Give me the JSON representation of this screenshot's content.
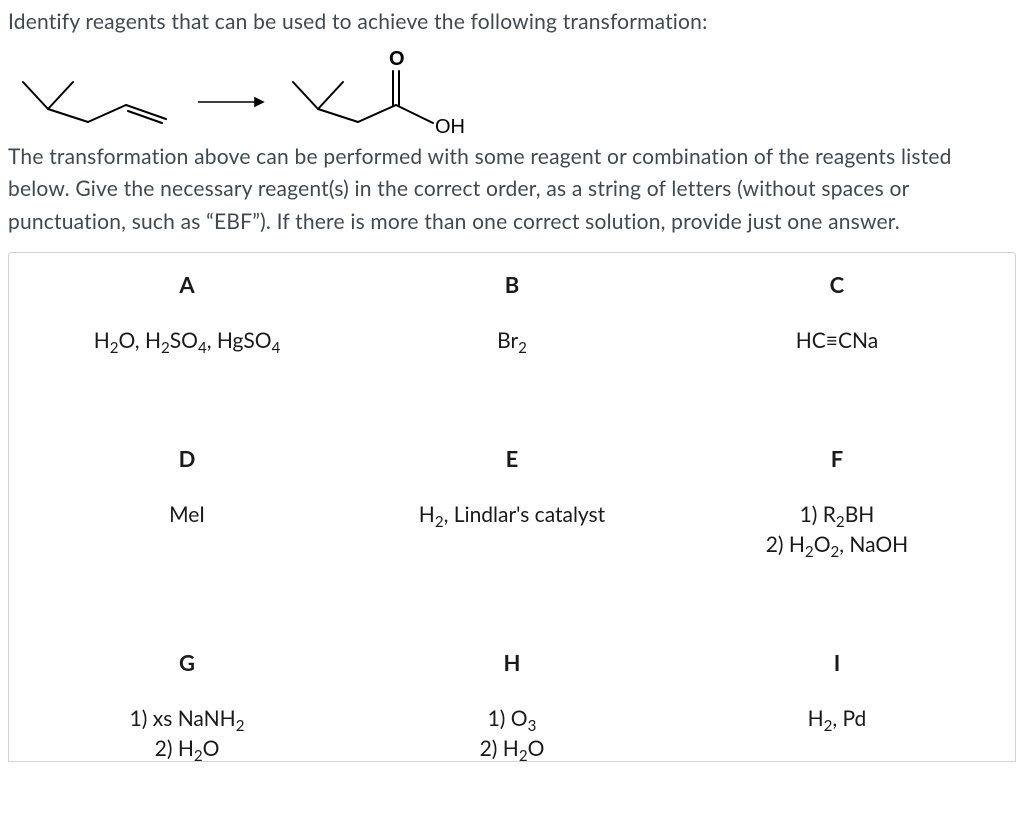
{
  "intro": "Identify reagents that can be used to achieve the following transformation:",
  "paragraph_prefix": "The transformation above can be performed with some reagent or combination of the reagents listed below. Give the necessary reagent(s) in the correct order, as a string of letters (without spaces or punctuation, such as “",
  "paragraph_code": "EBF",
  "paragraph_suffix": "”). If there is more than one correct solution, provide just one answer.",
  "reaction": {
    "product_label_O": "O",
    "product_label_OH": "OH",
    "stroke_color": "#000000",
    "stroke_width": 2,
    "label_fontsize": 20,
    "label_font": "Arial, sans-serif"
  },
  "reagents_box": {
    "border_color": "#cfd5da"
  },
  "reagents": {
    "A": {
      "letter": "A",
      "html": "H<sub>2</sub>O, H<sub>2</sub>SO<sub>4</sub>, HgSO<sub>4</sub>"
    },
    "B": {
      "letter": "B",
      "html": "Br<sub>2</sub>"
    },
    "C": {
      "letter": "C",
      "html": "HC≡CNa"
    },
    "D": {
      "letter": "D",
      "html": "MeI"
    },
    "E": {
      "letter": "E",
      "html": "H<sub>2</sub>, Lindlar's catalyst"
    },
    "F": {
      "letter": "F",
      "html": "1) R<sub>2</sub>BH<br>2) H<sub>2</sub>O<sub>2</sub>, NaOH"
    },
    "G": {
      "letter": "G",
      "html": "1) xs NaNH<sub>2</sub><br>2) H<sub>2</sub>O"
    },
    "H": {
      "letter": "H",
      "html": "1) O<sub>3</sub><br>2) H<sub>2</sub>O"
    },
    "I": {
      "letter": "I",
      "html": "H<sub>2</sub>, Pd"
    }
  }
}
